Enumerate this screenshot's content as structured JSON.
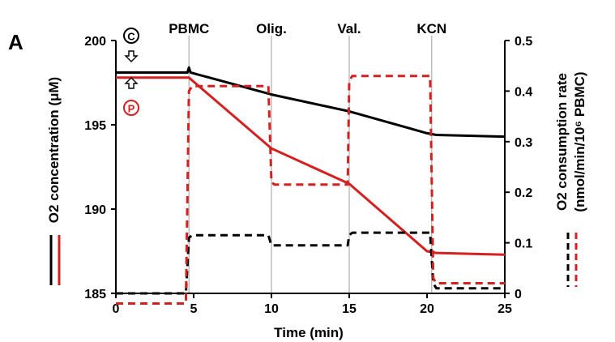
{
  "panel_label": "A",
  "colors": {
    "black": "#000000",
    "red": "#d42020"
  },
  "chart_data": {
    "type": "line",
    "xlabel": "Time (min)",
    "ylabel_left": "O2 concentration (μM)",
    "ylabel_right_line1": "O2 consumption rate",
    "ylabel_right_line2": "(nmol/min/10⁶ PBMC)",
    "xlim": [
      0,
      25
    ],
    "xticks": [
      "0",
      "5",
      "10",
      "15",
      "20",
      "25"
    ],
    "xtick_values": [
      0,
      5,
      10,
      15,
      20,
      25
    ],
    "ylim_left": [
      185,
      200
    ],
    "yticks_left": [
      "185",
      "190",
      "195",
      "200"
    ],
    "ytick_values_left": [
      185,
      190,
      195,
      200
    ],
    "ylim_right": [
      0,
      0.5
    ],
    "yticks_right": [
      "0",
      "0.1",
      "0.2",
      "0.3",
      "0.4",
      "0.5"
    ],
    "ytick_values_right": [
      0,
      0.1,
      0.2,
      0.3,
      0.4,
      0.5
    ],
    "grid": false,
    "events": [
      {
        "label": "PBMC",
        "x": 4.7
      },
      {
        "label": "Olig.",
        "x": 10
      },
      {
        "label": "Val.",
        "x": 15
      },
      {
        "label": "KCN",
        "x": 20.3
      }
    ],
    "control_symbol": "C",
    "patient_symbol": "P",
    "series": [
      {
        "axis": "left",
        "style": "solid",
        "color": "#000000",
        "x": [
          0,
          4.6,
          4.7,
          4.8,
          10,
          15,
          20,
          20.6,
          25
        ],
        "y": [
          198.1,
          198.1,
          198.4,
          198.1,
          196.8,
          195.8,
          194.5,
          194.4,
          194.3
        ]
      },
      {
        "axis": "left",
        "style": "solid",
        "color": "#d42020",
        "x": [
          0,
          4.7,
          10,
          15,
          20,
          20.6,
          25
        ],
        "y": [
          197.8,
          197.8,
          193.6,
          191.5,
          187.5,
          187.4,
          187.3
        ]
      },
      {
        "axis": "right",
        "style": "dashed",
        "color": "#000000",
        "x": [
          0,
          4.5,
          4.7,
          4.9,
          9.8,
          10,
          10.2,
          14.9,
          15,
          15.2,
          20.2,
          20.4,
          20.6,
          25
        ],
        "y": [
          0,
          0,
          0.11,
          0.115,
          0.115,
          0.095,
          0.095,
          0.095,
          0.115,
          0.12,
          0.12,
          0.02,
          0.01,
          0.01
        ]
      },
      {
        "axis": "right",
        "style": "dashed",
        "color": "#d42020",
        "x": [
          0,
          4.5,
          4.7,
          4.9,
          9.8,
          10,
          10.2,
          14.9,
          15,
          15.2,
          20.2,
          20.4,
          20.6,
          25
        ],
        "y": [
          -0.02,
          -0.02,
          0.4,
          0.41,
          0.41,
          0.22,
          0.215,
          0.215,
          0.42,
          0.43,
          0.43,
          0.03,
          0.02,
          0.02
        ]
      }
    ]
  }
}
